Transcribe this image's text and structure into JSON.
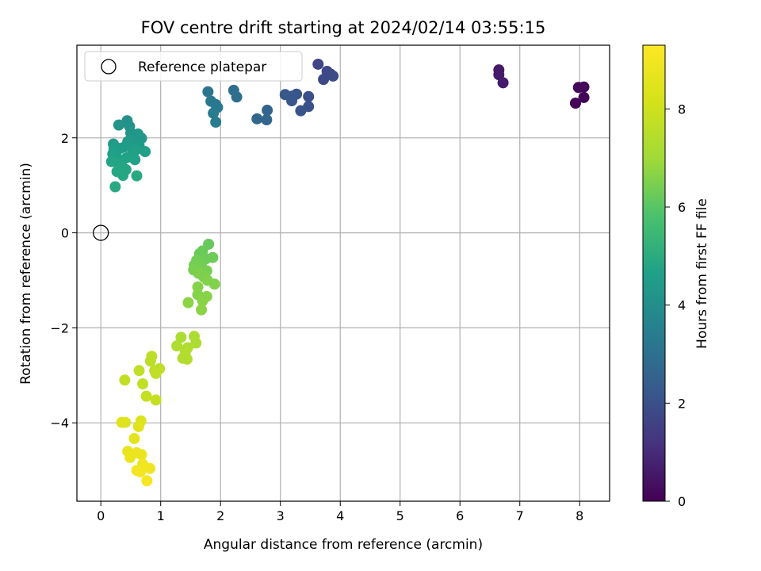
{
  "chart_data": {
    "type": "scatter",
    "title": "FOV centre drift starting at 2024/02/14 03:55:15",
    "xlabel": "Angular distance from reference (arcmin)",
    "ylabel": "Rotation from reference (arcmin)",
    "xlim": [
      -0.4,
      8.5
    ],
    "ylim": [
      -5.65,
      3.95
    ],
    "xticks": [
      0,
      1,
      2,
      3,
      4,
      5,
      6,
      7,
      8
    ],
    "yticks": [
      -4,
      -2,
      0,
      2
    ],
    "grid": true,
    "legend": {
      "placement": "top-left",
      "entries": [
        "Reference platepar"
      ]
    },
    "reference": {
      "x": 0,
      "y": 0,
      "label": "Reference platepar"
    },
    "colorbar": {
      "label": "Hours from first FF file",
      "colormap": "viridis",
      "range": [
        0,
        9.3
      ],
      "ticks": [
        0,
        2,
        4,
        6,
        8
      ]
    },
    "points": [
      {
        "x": 7.93,
        "y": 2.73,
        "c": 0.05
      },
      {
        "x": 8.07,
        "y": 2.85,
        "c": 0.1
      },
      {
        "x": 7.98,
        "y": 3.06,
        "c": 0.15
      },
      {
        "x": 8.07,
        "y": 3.07,
        "c": 0.2
      },
      {
        "x": 6.65,
        "y": 3.43,
        "c": 0.55
      },
      {
        "x": 6.65,
        "y": 3.33,
        "c": 0.6
      },
      {
        "x": 6.72,
        "y": 3.16,
        "c": 0.65
      },
      {
        "x": 3.63,
        "y": 3.55,
        "c": 1.7
      },
      {
        "x": 3.78,
        "y": 3.4,
        "c": 1.75
      },
      {
        "x": 3.84,
        "y": 3.34,
        "c": 1.8
      },
      {
        "x": 3.88,
        "y": 3.3,
        "c": 1.85
      },
      {
        "x": 3.72,
        "y": 3.23,
        "c": 1.8
      },
      {
        "x": 3.47,
        "y": 2.87,
        "c": 2.0
      },
      {
        "x": 3.47,
        "y": 2.66,
        "c": 2.05
      },
      {
        "x": 3.34,
        "y": 2.57,
        "c": 2.1
      },
      {
        "x": 3.27,
        "y": 2.92,
        "c": 2.1
      },
      {
        "x": 3.2,
        "y": 2.88,
        "c": 2.15
      },
      {
        "x": 3.19,
        "y": 2.78,
        "c": 2.2
      },
      {
        "x": 3.08,
        "y": 2.91,
        "c": 2.2
      },
      {
        "x": 2.78,
        "y": 2.58,
        "c": 2.6
      },
      {
        "x": 2.77,
        "y": 2.38,
        "c": 2.65
      },
      {
        "x": 2.61,
        "y": 2.4,
        "c": 2.7
      },
      {
        "x": 2.27,
        "y": 2.86,
        "c": 2.9
      },
      {
        "x": 2.22,
        "y": 3.0,
        "c": 2.95
      },
      {
        "x": 1.79,
        "y": 2.97,
        "c": 3.2
      },
      {
        "x": 1.84,
        "y": 2.77,
        "c": 3.25
      },
      {
        "x": 1.92,
        "y": 2.7,
        "c": 3.3
      },
      {
        "x": 1.95,
        "y": 2.64,
        "c": 3.3
      },
      {
        "x": 1.88,
        "y": 2.52,
        "c": 3.35
      },
      {
        "x": 1.92,
        "y": 2.33,
        "c": 3.4
      },
      {
        "x": 0.44,
        "y": 2.36,
        "c": 4.1
      },
      {
        "x": 0.48,
        "y": 2.24,
        "c": 4.15
      },
      {
        "x": 0.3,
        "y": 2.27,
        "c": 4.2
      },
      {
        "x": 0.5,
        "y": 2.1,
        "c": 4.25
      },
      {
        "x": 0.62,
        "y": 2.08,
        "c": 4.3
      },
      {
        "x": 0.58,
        "y": 2.02,
        "c": 4.3
      },
      {
        "x": 0.68,
        "y": 1.99,
        "c": 4.35
      },
      {
        "x": 0.52,
        "y": 1.95,
        "c": 4.35
      },
      {
        "x": 0.45,
        "y": 1.92,
        "c": 4.4
      },
      {
        "x": 0.21,
        "y": 1.87,
        "c": 4.45
      },
      {
        "x": 0.64,
        "y": 1.83,
        "c": 4.45
      },
      {
        "x": 0.4,
        "y": 1.81,
        "c": 4.5
      },
      {
        "x": 0.33,
        "y": 1.78,
        "c": 4.5
      },
      {
        "x": 0.22,
        "y": 1.76,
        "c": 4.55
      },
      {
        "x": 0.53,
        "y": 1.75,
        "c": 4.55
      },
      {
        "x": 0.58,
        "y": 1.74,
        "c": 4.6
      },
      {
        "x": 0.74,
        "y": 1.71,
        "c": 4.6
      },
      {
        "x": 0.2,
        "y": 1.66,
        "c": 4.65
      },
      {
        "x": 0.26,
        "y": 1.6,
        "c": 4.65
      },
      {
        "x": 0.43,
        "y": 1.58,
        "c": 4.7
      },
      {
        "x": 0.57,
        "y": 1.54,
        "c": 4.7
      },
      {
        "x": 0.18,
        "y": 1.5,
        "c": 4.75
      },
      {
        "x": 0.3,
        "y": 1.45,
        "c": 4.75
      },
      {
        "x": 0.35,
        "y": 1.4,
        "c": 4.8
      },
      {
        "x": 0.42,
        "y": 1.33,
        "c": 4.8
      },
      {
        "x": 0.27,
        "y": 1.29,
        "c": 4.85
      },
      {
        "x": 0.37,
        "y": 1.21,
        "c": 4.85
      },
      {
        "x": 0.6,
        "y": 1.2,
        "c": 4.9
      },
      {
        "x": 0.24,
        "y": 0.97,
        "c": 4.95
      },
      {
        "x": 1.8,
        "y": -0.24,
        "c": 6.2
      },
      {
        "x": 1.7,
        "y": -0.38,
        "c": 6.25
      },
      {
        "x": 1.65,
        "y": -0.44,
        "c": 6.25
      },
      {
        "x": 1.87,
        "y": -0.52,
        "c": 6.3
      },
      {
        "x": 1.75,
        "y": -0.55,
        "c": 6.3
      },
      {
        "x": 1.6,
        "y": -0.58,
        "c": 6.35
      },
      {
        "x": 1.68,
        "y": -0.64,
        "c": 6.35
      },
      {
        "x": 1.56,
        "y": -0.68,
        "c": 6.4
      },
      {
        "x": 1.62,
        "y": -0.73,
        "c": 6.4
      },
      {
        "x": 1.55,
        "y": -0.78,
        "c": 6.45
      },
      {
        "x": 1.77,
        "y": -0.8,
        "c": 6.45
      },
      {
        "x": 1.63,
        "y": -0.85,
        "c": 6.5
      },
      {
        "x": 1.72,
        "y": -0.93,
        "c": 6.5
      },
      {
        "x": 1.78,
        "y": -1.0,
        "c": 6.55
      },
      {
        "x": 1.9,
        "y": -1.08,
        "c": 6.55
      },
      {
        "x": 1.62,
        "y": -1.14,
        "c": 6.6
      },
      {
        "x": 1.62,
        "y": -1.3,
        "c": 6.6
      },
      {
        "x": 1.77,
        "y": -1.34,
        "c": 6.65
      },
      {
        "x": 1.7,
        "y": -1.43,
        "c": 6.65
      },
      {
        "x": 1.46,
        "y": -1.47,
        "c": 6.7
      },
      {
        "x": 1.68,
        "y": -1.62,
        "c": 6.7
      },
      {
        "x": 1.56,
        "y": -2.18,
        "c": 7.2
      },
      {
        "x": 1.34,
        "y": -2.2,
        "c": 7.25
      },
      {
        "x": 1.59,
        "y": -2.32,
        "c": 7.25
      },
      {
        "x": 1.27,
        "y": -2.38,
        "c": 7.3
      },
      {
        "x": 1.45,
        "y": -2.42,
        "c": 7.3
      },
      {
        "x": 1.41,
        "y": -2.52,
        "c": 7.35
      },
      {
        "x": 1.37,
        "y": -2.64,
        "c": 7.35
      },
      {
        "x": 1.44,
        "y": -2.66,
        "c": 7.4
      },
      {
        "x": 0.85,
        "y": -2.6,
        "c": 7.6
      },
      {
        "x": 0.83,
        "y": -2.7,
        "c": 7.6
      },
      {
        "x": 0.98,
        "y": -2.86,
        "c": 7.65
      },
      {
        "x": 0.9,
        "y": -2.9,
        "c": 7.65
      },
      {
        "x": 0.64,
        "y": -2.9,
        "c": 7.7
      },
      {
        "x": 0.92,
        "y": -2.96,
        "c": 7.7
      },
      {
        "x": 0.4,
        "y": -3.1,
        "c": 7.75
      },
      {
        "x": 0.7,
        "y": -3.18,
        "c": 7.75
      },
      {
        "x": 0.76,
        "y": -3.44,
        "c": 7.8
      },
      {
        "x": 0.92,
        "y": -3.52,
        "c": 7.8
      },
      {
        "x": 0.67,
        "y": -3.96,
        "c": 8.4
      },
      {
        "x": 0.35,
        "y": -3.99,
        "c": 8.45
      },
      {
        "x": 0.41,
        "y": -3.99,
        "c": 8.45
      },
      {
        "x": 0.63,
        "y": -4.08,
        "c": 8.5
      },
      {
        "x": 0.56,
        "y": -4.33,
        "c": 8.6
      },
      {
        "x": 0.45,
        "y": -4.6,
        "c": 8.7
      },
      {
        "x": 0.6,
        "y": -4.63,
        "c": 8.75
      },
      {
        "x": 0.68,
        "y": -4.67,
        "c": 8.8
      },
      {
        "x": 0.49,
        "y": -4.73,
        "c": 8.8
      },
      {
        "x": 0.7,
        "y": -4.87,
        "c": 8.9
      },
      {
        "x": 0.82,
        "y": -4.96,
        "c": 8.95
      },
      {
        "x": 0.6,
        "y": -5.0,
        "c": 9.0
      },
      {
        "x": 0.66,
        "y": -5.03,
        "c": 9.05
      },
      {
        "x": 0.77,
        "y": -5.22,
        "c": 9.1
      }
    ]
  }
}
